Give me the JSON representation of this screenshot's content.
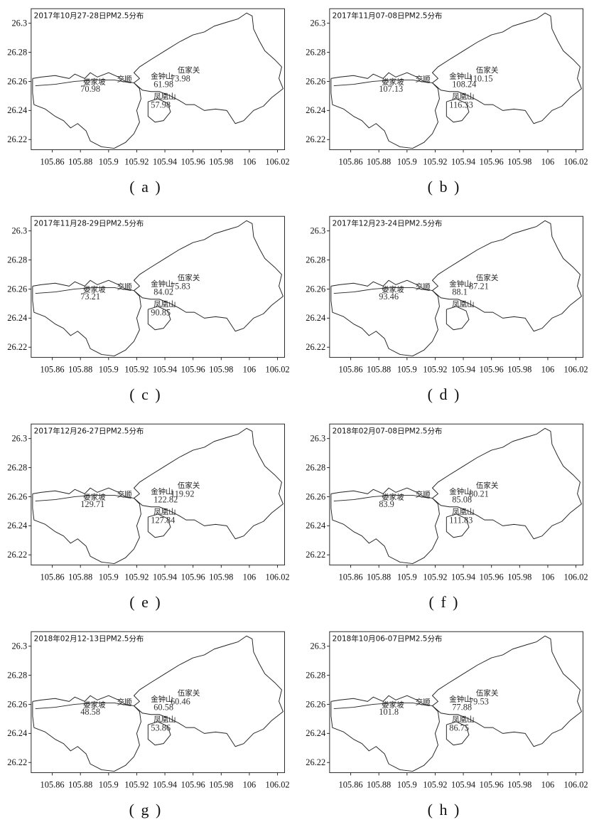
{
  "x_ticks": [
    "105.86",
    "105.88",
    "105.9",
    "105.92",
    "105.94",
    "105.96",
    "105.98",
    "106",
    "106.02"
  ],
  "y_ticks": [
    "26.3",
    "26.28",
    "26.26",
    "26.24",
    "26.22"
  ],
  "place_names": {
    "loujiapo": "娄家坡",
    "jiaoshun": "交顺",
    "jinzhongshan": "金钟山",
    "wujiaguan": "伍家关",
    "fenghuangshan": "凤凰山"
  },
  "panels": [
    {
      "caption": "( a )",
      "title": "2017年10月27-28日PM2.5分布",
      "values": {
        "loujiapo": "70.98",
        "jinzhongshan": "61.98",
        "wujiaguan": "73.98",
        "fenghuangshan": "57.98"
      }
    },
    {
      "caption": "( b )",
      "title": "2017年11月07-08日PM2.5分布",
      "values": {
        "loujiapo": "107.13",
        "jinzhongshan": "108.24",
        "wujiaguan": "110.15",
        "fenghuangshan": "116.33"
      }
    },
    {
      "caption": "( c )",
      "title": "2017年11月28-29日PM2.5分布",
      "values": {
        "loujiapo": "73.21",
        "jinzhongshan": "84.02",
        "wujiaguan": "75.83",
        "fenghuangshan": "90.85"
      }
    },
    {
      "caption": "( d )",
      "title": "2017年12月23-24日PM2.5分布",
      "values": {
        "loujiapo": "93.46",
        "jinzhongshan": "88.1",
        "wujiaguan": "87.21",
        "fenghuangshan": ""
      }
    },
    {
      "caption": "( e )",
      "title": "2017年12月26-27日PM2.5分布",
      "values": {
        "loujiapo": "129.71",
        "jinzhongshan": "122.82",
        "wujiaguan": "119.92",
        "fenghuangshan": "127.84"
      }
    },
    {
      "caption": "( f )",
      "title": "2018年02月07-08日PM2.5分布",
      "values": {
        "loujiapo": "83.9",
        "jinzhongshan": "85.08",
        "wujiaguan": "80.21",
        "fenghuangshan": "111.83"
      }
    },
    {
      "caption": "( g )",
      "title": "2018年02月12-13日PM2.5分布",
      "values": {
        "loujiapo": "48.58",
        "jinzhongshan": "60.58",
        "wujiaguan": "60.46",
        "fenghuangshan": "53.86"
      }
    },
    {
      "caption": "( h )",
      "title": "2018年10月06-07日PM2.5分布",
      "values": {
        "loujiapo": "101.8",
        "jinzhongshan": "77.88",
        "wujiaguan": "79.53",
        "fenghuangshan": "86.75"
      }
    }
  ],
  "colors": {
    "line": "#222222",
    "text": "#111111",
    "value_text": "#333333"
  }
}
